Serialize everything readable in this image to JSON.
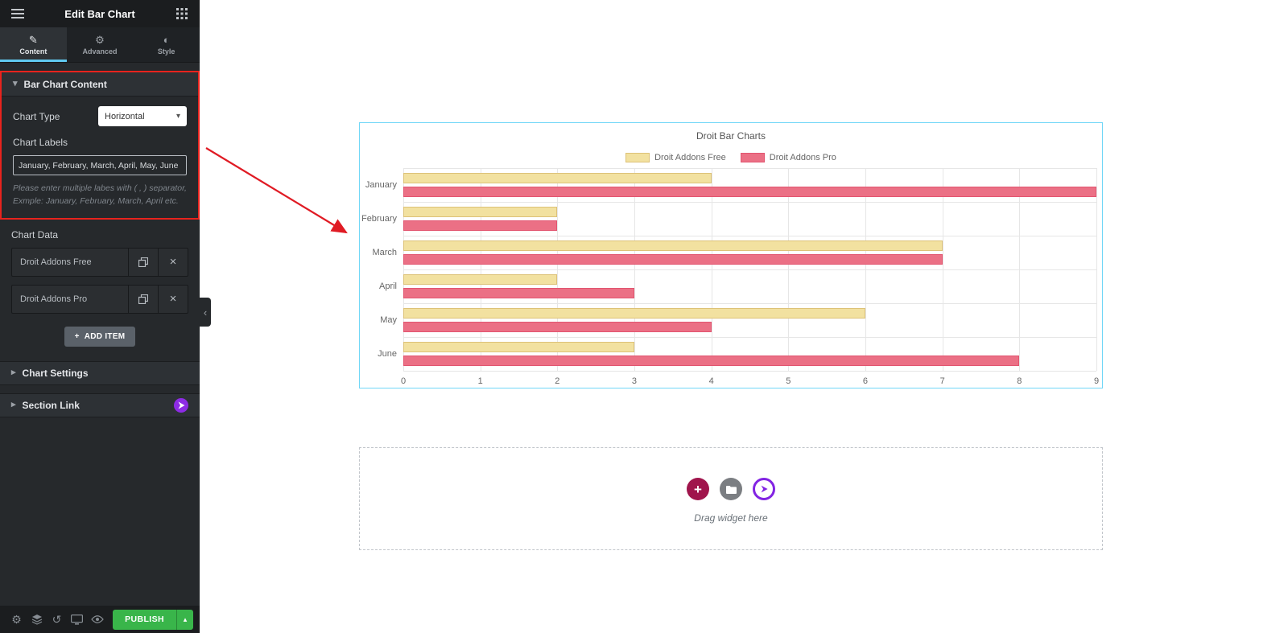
{
  "colors": {
    "accent_cyan": "#61c9f0",
    "highlight_red": "#e8231d",
    "publish_green": "#39b54a",
    "brand_purple": "#8224e3",
    "selection_blue": "#71d7f7",
    "add_circle_maroon": "#a0154c",
    "folder_circle_gray": "#7b7e82"
  },
  "icons": {
    "pencil": "✎",
    "gear": "⚙",
    "style_contrast": "◐",
    "caret_down": "▾",
    "caret_right": "▸",
    "caret_up": "▴",
    "select_caret": "▾",
    "close": "×",
    "plus": "+",
    "collapse": "‹",
    "history": "↺"
  },
  "panel": {
    "title": "Edit Bar Chart",
    "tabs": [
      {
        "label": "Content"
      },
      {
        "label": "Advanced"
      },
      {
        "label": "Style"
      }
    ],
    "content_section": {
      "header": "Bar Chart Content",
      "chart_type_label": "Chart Type",
      "chart_type_value": "Horizontal",
      "chart_labels_label": "Chart Labels",
      "chart_labels_value": "January, February, March, April, May, June",
      "helper_text": "Please enter multiple labes with ( , ) separator, Exmple: January, February, March, April etc."
    },
    "chart_data_label": "Chart Data",
    "repeater_items": [
      {
        "name": "Droit Addons Free"
      },
      {
        "name": "Droit Addons Pro"
      }
    ],
    "add_item_label": "ADD ITEM",
    "accordions": [
      {
        "label": "Chart Settings"
      },
      {
        "label": "Section Link"
      }
    ],
    "footer": {
      "publish_label": "PUBLISH"
    }
  },
  "canvas": {
    "drop_hint": "Drag widget here"
  },
  "chart_data": {
    "type": "bar",
    "orientation": "horizontal",
    "title": "Droit Bar Charts",
    "categories": [
      "January",
      "February",
      "March",
      "April",
      "May",
      "June"
    ],
    "series": [
      {
        "name": "Droit Addons Free",
        "color": "#f2e1a0",
        "border_color": "#ddc278",
        "values": [
          4,
          2,
          7,
          2,
          6,
          3
        ]
      },
      {
        "name": "Droit Addons Pro",
        "color": "#eb7085",
        "border_color": "#e25570",
        "values": [
          9,
          2,
          7,
          3,
          4,
          8
        ]
      }
    ],
    "xlim": [
      0,
      9
    ],
    "xticks": [
      0,
      1,
      2,
      3,
      4,
      5,
      6,
      7,
      8,
      9
    ],
    "grid": true,
    "legend_position": "top"
  }
}
